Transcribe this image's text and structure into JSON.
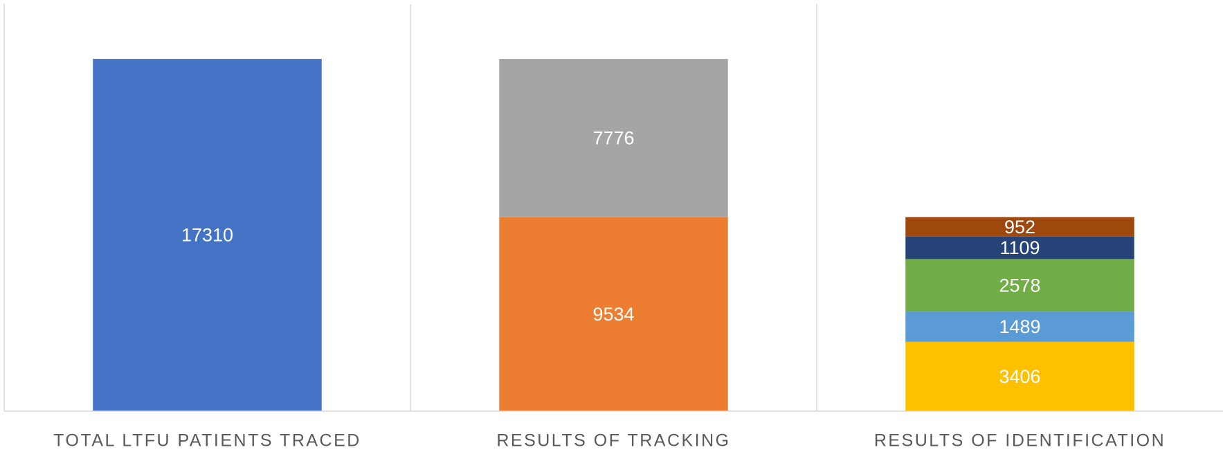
{
  "chart_data": {
    "type": "stacked_bar",
    "categories": [
      "TOTAL LTFU PATIENTS TRACED",
      "RESULTS OF TRACKING",
      "RESULTS OF IDENTIFICATION"
    ],
    "series": [
      {
        "color": "#4472c4",
        "values": [
          17310,
          null,
          null
        ]
      },
      {
        "color": "#ed7d31",
        "values": [
          null,
          9534,
          null
        ]
      },
      {
        "color": "#a5a5a5",
        "values": [
          null,
          7776,
          null
        ]
      },
      {
        "color": "#ffc000",
        "values": [
          null,
          null,
          3406
        ]
      },
      {
        "color": "#5b9bd5",
        "values": [
          null,
          null,
          1489
        ]
      },
      {
        "color": "#70ad47",
        "values": [
          null,
          null,
          2578
        ]
      },
      {
        "color": "#264478",
        "values": [
          null,
          null,
          1109
        ]
      },
      {
        "color": "#9e480e",
        "values": [
          null,
          null,
          952
        ]
      }
    ],
    "ylim": [
      0,
      20000
    ]
  }
}
